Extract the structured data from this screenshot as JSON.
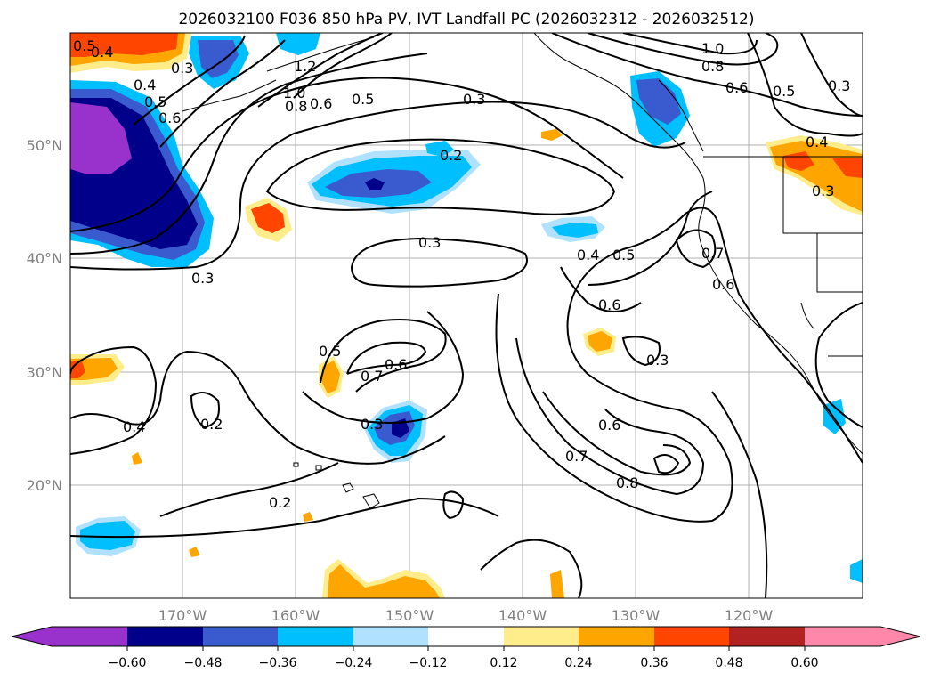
{
  "title": "2026032100 F036 850 hPa PV, IVT Landfall PC (2026032312 - 2026032512)",
  "lat_labels": [
    "50°N",
    "40°N",
    "30°N",
    "20°N"
  ],
  "lon_labels": [
    "170°W",
    "160°W",
    "150°W",
    "140°W",
    "130°W",
    "120°W"
  ],
  "colorbar": {
    "ticks": [
      "−0.60",
      "−0.48",
      "−0.36",
      "−0.24",
      "−0.12",
      "0.12",
      "0.24",
      "0.36",
      "0.48",
      "0.60"
    ],
    "colors": [
      "#9932cc",
      "#00008b",
      "#3a5bd0",
      "#00bfff",
      "#b0e2ff",
      "#ffffff",
      "#ffec8b",
      "#ffa500",
      "#ff4500",
      "#b22222",
      "#ff88aa"
    ]
  },
  "contour_labels": [
    "0.5",
    "0.4",
    "0.3",
    "0.4",
    "0.5",
    "0.6",
    "1.2",
    "1.0",
    "0.8",
    "0.6",
    "0.5",
    "0.3",
    "1.0",
    "0.8",
    "0.6",
    "0.5",
    "0.3",
    "0.4",
    "0.3",
    "0.2",
    "0.3",
    "0.3",
    "0.4",
    "0.5",
    "0.7",
    "0.6",
    "0.6",
    "0.5",
    "0.7",
    "0.6",
    "0.3",
    "0.4",
    "0.2",
    "0.3",
    "0.6",
    "0.7",
    "0.8",
    "0.2"
  ]
}
